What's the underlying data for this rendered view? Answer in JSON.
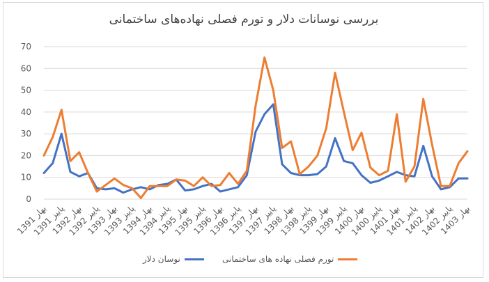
{
  "chart_data": {
    "type": "line",
    "title": "بررسی نوسانات دلار و تورم فصلی نهاده‌های ساختمانی",
    "ylim": [
      0,
      70
    ],
    "yticks": [
      0,
      10,
      20,
      30,
      40,
      50,
      60,
      70
    ],
    "grid": "horizontal",
    "legend": "bottom",
    "x_tick_labels": [
      "بهار 1391",
      "پاییز 1391",
      "بهار 1392",
      "پاییز 1392",
      "بهار 1393",
      "پاییز 1393",
      "بهار 1394",
      "پاییز 1394",
      "بهار 1395",
      "پاییز 1395",
      "بهار 1396",
      "پاییز 1396",
      "بهار 1397",
      "پاییز 1397",
      "بهار 1398",
      "پاییز 1398",
      "بهار 1399",
      "پاییز 1399",
      "بهار 1400",
      "پاییز 1400",
      "بهار 1401",
      "پاییز 1401",
      "بهار 1402",
      "پاییز 1402",
      "بهار 1403"
    ],
    "series": [
      {
        "name": "نوسان دلار",
        "color": "#4472c4",
        "values": [
          12,
          16.5,
          30,
          12.5,
          10.5,
          12,
          5,
          4.5,
          5,
          3,
          4.5,
          5.5,
          4.5,
          6.5,
          7,
          9,
          4,
          4.5,
          6,
          7,
          3.5,
          4.5,
          5.5,
          11,
          31,
          39,
          43.5,
          16,
          12,
          11,
          11,
          11.5,
          15,
          28,
          17.5,
          16.5,
          11,
          7.5,
          8.5,
          10.5,
          12.5,
          11,
          10.5,
          24.5,
          10.5,
          4.5,
          5.5,
          9.5,
          9.5
        ]
      },
      {
        "name": "تورم فصلی نهاده های ساختمانی",
        "color": "#ed7d31",
        "values": [
          20,
          28.5,
          41,
          17.5,
          21.5,
          12,
          3.5,
          6.5,
          9.5,
          6.5,
          5,
          0.5,
          6,
          6,
          6,
          9,
          8.5,
          6,
          10,
          6,
          6.5,
          12,
          7,
          13,
          43,
          65,
          50,
          23.5,
          26.5,
          11.5,
          15,
          20,
          32.5,
          58,
          40,
          22.5,
          30.5,
          14.5,
          11,
          13,
          39,
          8,
          15,
          46,
          25,
          6,
          6,
          16.5,
          22
        ]
      }
    ]
  }
}
